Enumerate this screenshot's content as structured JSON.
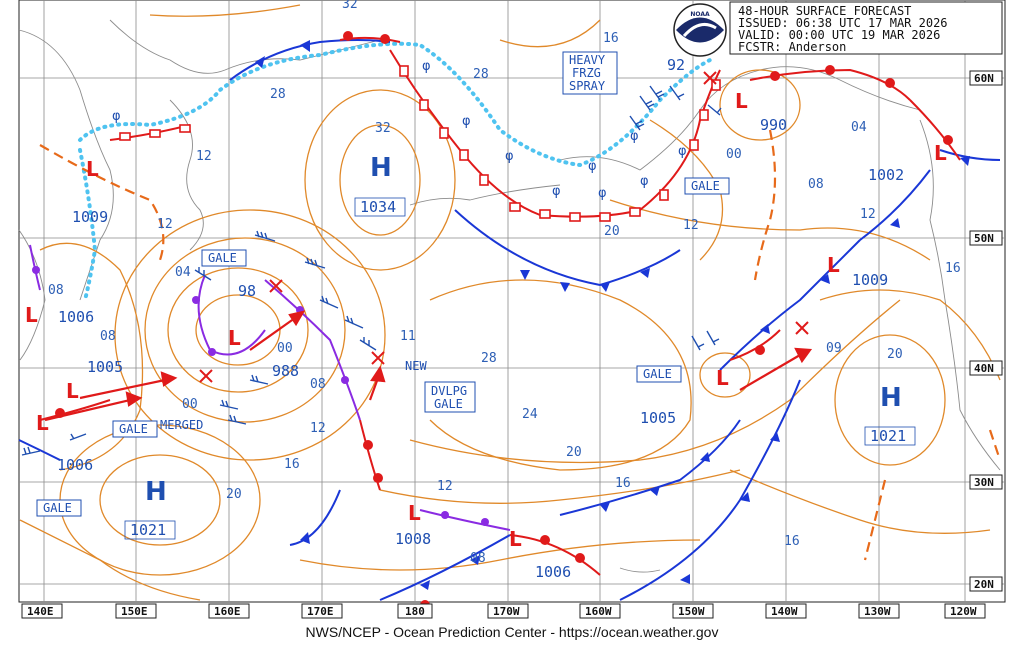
{
  "header": {
    "title": "48-HOUR SURFACE FORECAST",
    "issued": "ISSUED: 06:38 UTC 17 MAR 2026",
    "valid": "VALID:  00:00 UTC 19 MAR 2026",
    "forecaster": "FCSTR:  Anderson",
    "logo_text": "NOAA"
  },
  "footer": "NWS/NCEP - Ocean Prediction Center - https://ocean.weather.gov",
  "lon_labels": [
    "140E",
    "150E",
    "160E",
    "170E",
    "180",
    "170W",
    "160W",
    "150W",
    "140W",
    "130W",
    "120W"
  ],
  "lat_labels": [
    "60N",
    "50N",
    "40N",
    "30N",
    "20N"
  ],
  "pressure_centers": {
    "highs": [
      {
        "label": "H",
        "value": "1034"
      },
      {
        "label": "H",
        "value": "1021"
      },
      {
        "label": "H",
        "value": "1021"
      }
    ],
    "lows": [
      {
        "value": "1009"
      },
      {
        "value": "1006"
      },
      {
        "value": "1005"
      },
      {
        "value": "1006"
      },
      {
        "value": "988"
      },
      {
        "value": "1008"
      },
      {
        "value": "1006"
      },
      {
        "value": "1005"
      },
      {
        "value": "990"
      },
      {
        "value": "1002"
      },
      {
        "value": "1009"
      },
      {
        "value": "98"
      },
      {
        "value": "92"
      }
    ]
  },
  "isobar_labels": [
    "32",
    "16",
    "28",
    "28",
    "32",
    "12",
    "04",
    "08",
    "00",
    "08",
    "12",
    "16",
    "20",
    "11",
    "28",
    "24",
    "20",
    "16",
    "12",
    "08",
    "00",
    "09",
    "20",
    "16",
    "04",
    "08",
    "12",
    "20",
    "12",
    "00",
    "08",
    "16",
    "12"
  ],
  "warnings": {
    "heavy_frzg_spray": [
      "HEAVY",
      "FRZG",
      "SPRAY"
    ],
    "gale": "GALE",
    "dvlpg_gale": [
      "DVLPG",
      "GALE"
    ],
    "new": "NEW",
    "merged": "MERGED"
  },
  "colors": {
    "isobar": "#e0892a",
    "cold_front": "#1a37d6",
    "warm_front": "#e01a1a",
    "occluded": "#8a2be2",
    "ice_edge": "#4fc3f0",
    "text": "#1f4fb0",
    "grid": "#7f7f7f",
    "land": "#8c8c8c"
  }
}
